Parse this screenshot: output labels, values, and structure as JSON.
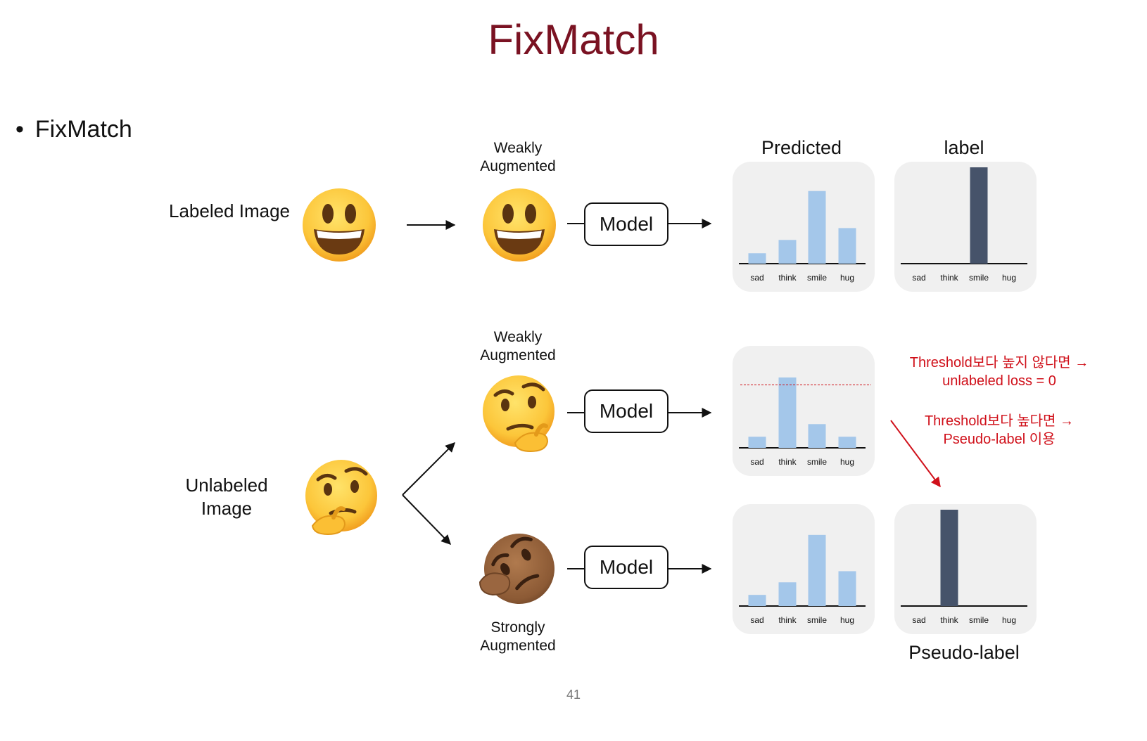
{
  "title": "FixMatch",
  "bullet": "FixMatch",
  "labels": {
    "labeled_image": "Labeled Image",
    "unlabeled_image": "Unlabeled Image",
    "weakly_augmented_1": "Weakly Augmented",
    "weakly_augmented_2": "Weakly Augmented",
    "strongly_augmented": "Strongly Augmented",
    "predicted": "Predicted",
    "label": "label",
    "pseudo_label": "Pseudo-label",
    "model": "Model"
  },
  "notes": {
    "below_threshold": "Threshold보다 높지 않다면 → unlabeled loss = 0",
    "above_threshold": "Threshold보다 높다면 → Pseudo-label 이용"
  },
  "page_number": "41",
  "colors": {
    "title": "#7a1222",
    "predicted_bar": "#a4c7ea",
    "label_bar": "#46536a",
    "note": "#d0101a",
    "panel_bg": "#f0f0f0"
  },
  "icons": {
    "smiley": "grinning-face-icon",
    "thinking": "thinking-face-icon",
    "thinking_dark": "thinking-face-dark-skin-icon"
  },
  "chart_data": [
    {
      "type": "bar",
      "name_ref": "labeled-predicted",
      "categories": [
        "sad",
        "think",
        "smile",
        "hug"
      ],
      "values": [
        0.14,
        0.32,
        0.98,
        0.48
      ],
      "ylim": [
        0,
        1.3
      ],
      "color": "#a4c7ea"
    },
    {
      "type": "bar",
      "name_ref": "labeled-label",
      "categories": [
        "sad",
        "think",
        "smile",
        "hug"
      ],
      "values": [
        0,
        0,
        1,
        0
      ],
      "ylim": [
        0,
        1.0
      ],
      "color": "#46536a"
    },
    {
      "type": "bar",
      "name_ref": "weak-predicted",
      "categories": [
        "sad",
        "think",
        "smile",
        "hug"
      ],
      "values": [
        0.15,
        0.95,
        0.32,
        0.15
      ],
      "ylim": [
        0,
        1.3
      ],
      "color": "#a4c7ea",
      "threshold": 0.85
    },
    {
      "type": "bar",
      "name_ref": "strong-predicted",
      "categories": [
        "sad",
        "think",
        "smile",
        "hug"
      ],
      "values": [
        0.15,
        0.32,
        0.96,
        0.47
      ],
      "ylim": [
        0,
        1.3
      ],
      "color": "#a4c7ea"
    },
    {
      "type": "bar",
      "name_ref": "pseudo-label",
      "categories": [
        "sad",
        "think",
        "smile",
        "hug"
      ],
      "values": [
        0,
        1,
        0,
        0
      ],
      "ylim": [
        0,
        1.0
      ],
      "color": "#46536a"
    }
  ]
}
